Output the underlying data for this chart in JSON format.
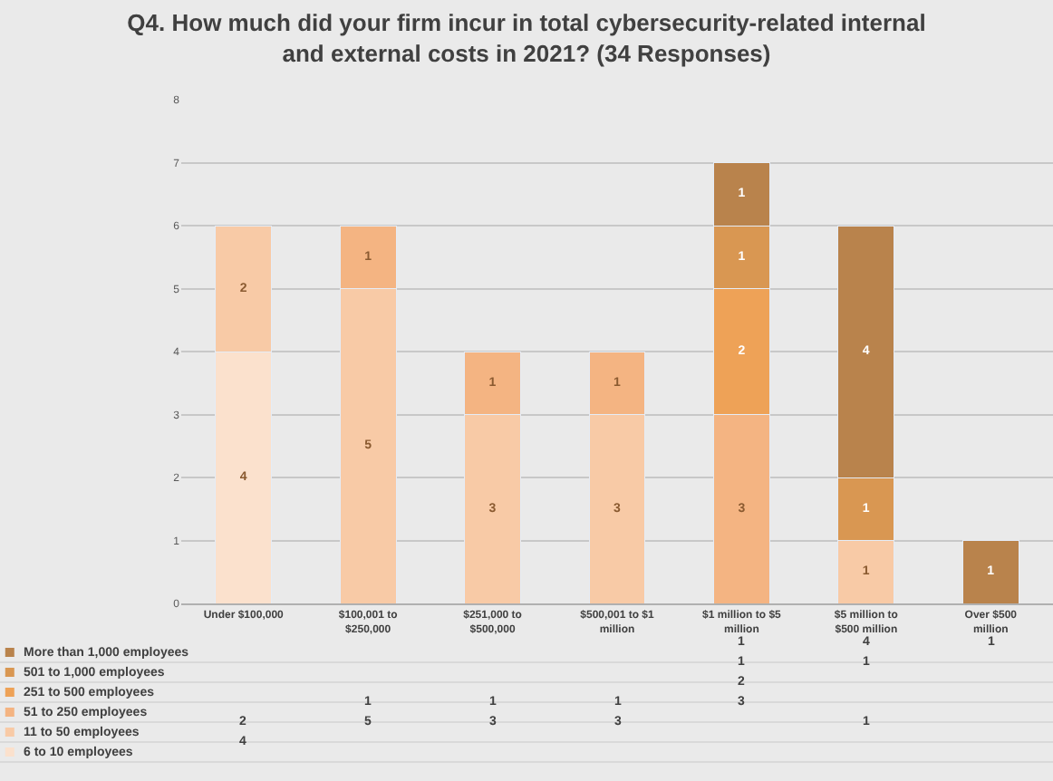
{
  "chart_data": {
    "type": "bar",
    "stacked": true,
    "title": "Q4. How much did your firm incur in total cybersecurity-related internal and external costs in 2021? (34 Responses)",
    "categories": [
      "Under $100,000",
      "$100,001 to $250,000",
      "$251,000 to $500,000",
      "$500,001 to $1 million",
      "$1 million to $5 million",
      "$5 million to $500 million",
      "Over $500 million"
    ],
    "series": [
      {
        "name": "6 to 10 employees",
        "color": "#fbe1cd",
        "values": [
          4,
          null,
          null,
          null,
          null,
          null,
          null
        ],
        "value_labels": [
          "4",
          null,
          null,
          null,
          null,
          null,
          null
        ]
      },
      {
        "name": "11 to 50 employees",
        "color": "#f8caa6",
        "values": [
          2,
          5,
          3,
          3,
          null,
          1,
          null
        ],
        "value_labels": [
          "2",
          "5",
          "3",
          "3",
          null,
          "1",
          null
        ]
      },
      {
        "name": "51 to 250 employees",
        "color": "#f4b482",
        "values": [
          null,
          1,
          1,
          1,
          3,
          null,
          null
        ],
        "value_labels": [
          null,
          "1",
          "1",
          "1",
          "3",
          null,
          null
        ]
      },
      {
        "name": "251 to 500 employees",
        "color": "#eea257",
        "values": [
          null,
          null,
          null,
          null,
          2,
          null,
          null
        ],
        "value_labels": [
          null,
          null,
          null,
          null,
          "2",
          null,
          null
        ]
      },
      {
        "name": "501 to 1,000 employees",
        "color": "#d99752",
        "values": [
          null,
          null,
          null,
          null,
          1,
          1,
          null
        ],
        "value_labels": [
          null,
          null,
          null,
          null,
          "1",
          "1",
          null
        ]
      },
      {
        "name": "More than 1,000 employees",
        "color": "#b9834c",
        "values": [
          null,
          null,
          null,
          null,
          1,
          4,
          1
        ],
        "value_labels": [
          null,
          null,
          null,
          null,
          "1",
          "4",
          "1"
        ]
      }
    ],
    "ylim": [
      0,
      8
    ],
    "yticks": [
      0,
      1,
      2,
      3,
      4,
      5,
      6,
      7,
      8
    ],
    "grid": "y",
    "data_labels": true,
    "legend": "bottom left"
  }
}
